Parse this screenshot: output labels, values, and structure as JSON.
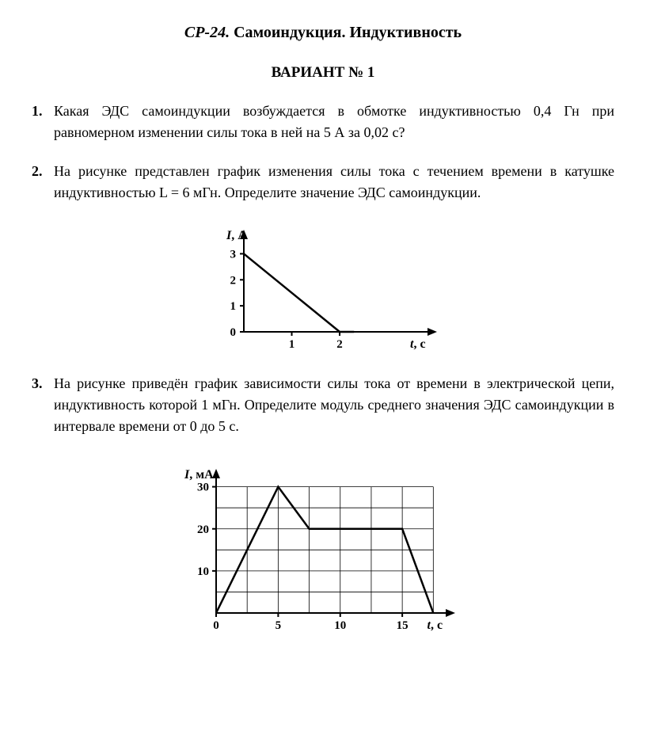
{
  "header": {
    "prefix": "СР-24.",
    "title": "Самоиндукция. Индуктивность",
    "variant": "ВАРИАНТ № 1"
  },
  "problems": [
    {
      "num": "1.",
      "text": "Какая ЭДС самоиндукции возбуждается в обмотке индуктивностью 0,4 Гн при равномерном изменении силы тока в ней на 5 А за 0,02 с?"
    },
    {
      "num": "2.",
      "text": "На рисунке представлен график изменения силы тока с течением времени в катушке индуктивностью L = 6 мГн. Определите значение ЭДС самоиндукции."
    },
    {
      "num": "3.",
      "text": "На рисунке приведён график зависимости силы тока от времени в электрической цепи, индуктивность которой 1 мГн. Определите модуль среднего значения ЭДС самоиндукции в интервале времени от 0 до 5 с."
    }
  ],
  "chart1": {
    "type": "line",
    "y_label": "I, А",
    "x_label": "t, с",
    "y_ticks": [
      0,
      1,
      2,
      3
    ],
    "x_ticks": [
      1,
      2
    ],
    "points": [
      [
        0,
        3
      ],
      [
        2,
        0
      ]
    ],
    "xlim": [
      0,
      3.8
    ],
    "ylim": [
      0,
      3.5
    ],
    "line_color": "#000000",
    "line_width": 2.5,
    "background": "#ffffff"
  },
  "chart2": {
    "type": "line",
    "y_label": "I, мА",
    "x_label": "t, с",
    "y_ticks": [
      10,
      20,
      30
    ],
    "x_ticks": [
      0,
      5,
      10,
      15
    ],
    "grid_x_step": 2.5,
    "grid_y_step": 5,
    "points": [
      [
        0,
        0
      ],
      [
        5,
        30
      ],
      [
        7.5,
        20
      ],
      [
        15,
        20
      ],
      [
        17.5,
        0
      ]
    ],
    "xlim": [
      0,
      18.5
    ],
    "ylim": [
      0,
      32
    ],
    "line_color": "#000000",
    "line_width": 2.5,
    "grid_color": "#000000",
    "background": "#ffffff"
  }
}
